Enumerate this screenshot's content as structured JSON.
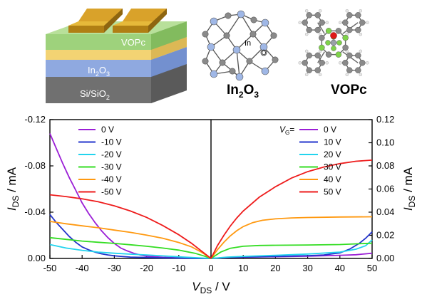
{
  "schematic": {
    "layers": [
      "VOPc",
      "In2O3",
      "Si/SiO2"
    ],
    "colors": {
      "vopc": "#9ed27c",
      "gold_band": "#f3d373",
      "in2o3": "#8fa9e0",
      "sio2": "#707070",
      "electrode": "#c8961e"
    }
  },
  "molecules": {
    "left_name": "In2O3",
    "left_atom_label": "In",
    "left_atom_label2": "O",
    "right_name": "VOPc"
  },
  "chart_data": {
    "type": "line",
    "xlabel": "VDS / V",
    "ylabel_left": "IDS / mA",
    "ylabel_right": "IDS / mA",
    "x_ticks": [
      -50,
      -40,
      -30,
      -20,
      -10,
      0,
      10,
      20,
      30,
      40,
      50
    ],
    "y_left_ticks": [
      "-0.12",
      "-0.08",
      "-0.04",
      "0.00"
    ],
    "y_right_ticks": [
      "0.12",
      "0.10",
      "0.08",
      "0.06",
      "0.04",
      "0.02",
      "0.00"
    ],
    "xlim": [
      -50,
      50
    ],
    "ylim": [
      0,
      0.12
    ],
    "legend_left": {
      "placement": "top-left",
      "entries": [
        "0 V",
        "-10 V",
        "-20 V",
        "-30 V",
        "-40 V",
        "-50 V"
      ]
    },
    "legend_right": {
      "placement": "top-right",
      "title": "VG=",
      "entries": [
        "0 V",
        "10 V",
        "20 V",
        "30 V",
        "40 V",
        "50 V"
      ]
    },
    "colors": [
      "#9b1fd6",
      "#2233cc",
      "#22d4ee",
      "#33dd22",
      "#ff9910",
      "#ee1c1c"
    ],
    "negative_series": [
      {
        "name": "0 V",
        "x": [
          -50,
          -48,
          -46,
          -44,
          -42,
          -40,
          -38,
          -36,
          -34,
          -32,
          -30,
          -28,
          -26,
          -24,
          -22,
          -20,
          -15,
          -10,
          -5,
          0
        ],
        "y": [
          0.108,
          0.095,
          0.082,
          0.07,
          0.059,
          0.048,
          0.039,
          0.031,
          0.024,
          0.018,
          0.013,
          0.009,
          0.0065,
          0.0045,
          0.003,
          0.002,
          0.001,
          0.0005,
          0.0002,
          0
        ]
      },
      {
        "name": "-10 V",
        "x": [
          -50,
          -48,
          -46,
          -44,
          -42,
          -40,
          -38,
          -36,
          -34,
          -32,
          -30,
          -28,
          -25,
          -20,
          -15,
          -10,
          -5,
          0
        ],
        "y": [
          0.038,
          0.031,
          0.025,
          0.019,
          0.014,
          0.01,
          0.0075,
          0.0055,
          0.004,
          0.003,
          0.0023,
          0.0018,
          0.0012,
          0.0008,
          0.0005,
          0.0003,
          0.0001,
          0
        ]
      },
      {
        "name": "-20 V",
        "x": [
          -50,
          -45,
          -40,
          -35,
          -30,
          -25,
          -20,
          -15,
          -10,
          -5,
          0
        ],
        "y": [
          0.012,
          0.009,
          0.007,
          0.0055,
          0.0045,
          0.0037,
          0.003,
          0.0022,
          0.0014,
          0.0007,
          0
        ]
      },
      {
        "name": "-30 V",
        "x": [
          -50,
          -45,
          -40,
          -35,
          -30,
          -25,
          -20,
          -15,
          -10,
          -5,
          -2,
          0
        ],
        "y": [
          0.018,
          0.0165,
          0.015,
          0.014,
          0.013,
          0.0118,
          0.0105,
          0.009,
          0.0072,
          0.0045,
          0.002,
          0
        ]
      },
      {
        "name": "-40 V",
        "x": [
          -50,
          -45,
          -40,
          -35,
          -30,
          -25,
          -20,
          -15,
          -10,
          -6,
          -3,
          0
        ],
        "y": [
          0.032,
          0.03,
          0.0282,
          0.0265,
          0.0245,
          0.0225,
          0.0202,
          0.0175,
          0.0138,
          0.01,
          0.0055,
          0
        ]
      },
      {
        "name": "-50 V",
        "x": [
          -50,
          -45,
          -40,
          -35,
          -30,
          -25,
          -20,
          -15,
          -10,
          -6,
          -3,
          0
        ],
        "y": [
          0.055,
          0.0535,
          0.0515,
          0.049,
          0.0455,
          0.041,
          0.0355,
          0.0285,
          0.0205,
          0.013,
          0.0065,
          0
        ]
      }
    ],
    "positive_series": [
      {
        "name": "0 V",
        "x": [
          0,
          5,
          10,
          20,
          30,
          40,
          45,
          50
        ],
        "y": [
          0,
          0.0008,
          0.0011,
          0.0015,
          0.002,
          0.0027,
          0.0032,
          0.0045
        ]
      },
      {
        "name": "10 V",
        "x": [
          0,
          5,
          10,
          20,
          30,
          35,
          40,
          43,
          46,
          48,
          50
        ],
        "y": [
          0,
          0.0008,
          0.0012,
          0.0017,
          0.0024,
          0.003,
          0.0048,
          0.008,
          0.013,
          0.0175,
          0.023
        ]
      },
      {
        "name": "20 V",
        "x": [
          0,
          5,
          10,
          20,
          30,
          40,
          45,
          48,
          50
        ],
        "y": [
          0,
          0.0012,
          0.0018,
          0.0027,
          0.0038,
          0.0055,
          0.008,
          0.011,
          0.016
        ]
      },
      {
        "name": "30 V",
        "x": [
          0,
          3,
          6,
          10,
          15,
          20,
          30,
          40,
          50
        ],
        "y": [
          0,
          0.0055,
          0.0088,
          0.0105,
          0.0112,
          0.0114,
          0.0116,
          0.012,
          0.0132
        ]
      },
      {
        "name": "40 V",
        "x": [
          0,
          2,
          4,
          6,
          8,
          10,
          13,
          16,
          20,
          25,
          30,
          40,
          50
        ],
        "y": [
          0,
          0.0075,
          0.014,
          0.0195,
          0.024,
          0.0275,
          0.031,
          0.033,
          0.0342,
          0.035,
          0.0354,
          0.0358,
          0.036
        ]
      },
      {
        "name": "50 V",
        "x": [
          0,
          2,
          4,
          6,
          8,
          10,
          15,
          20,
          25,
          30,
          35,
          40,
          45,
          50
        ],
        "y": [
          0,
          0.011,
          0.02,
          0.028,
          0.035,
          0.041,
          0.053,
          0.062,
          0.0695,
          0.075,
          0.079,
          0.082,
          0.084,
          0.085
        ]
      }
    ]
  }
}
